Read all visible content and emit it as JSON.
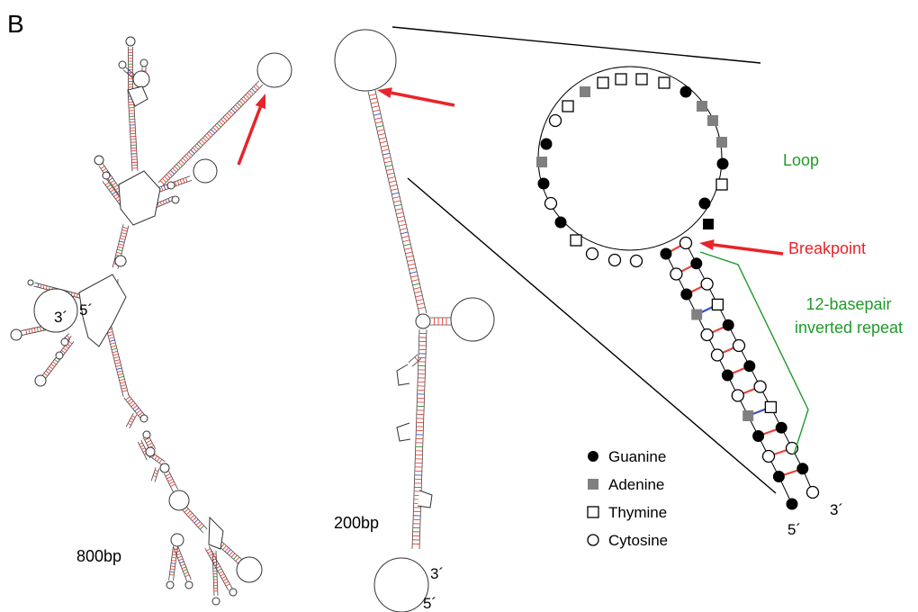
{
  "panel_label": "B",
  "left_structure": {
    "size_label": "800bp",
    "end3": "3´",
    "end5": "5´"
  },
  "middle_structure": {
    "size_label": "200bp",
    "end3": "3´",
    "end5": "5´"
  },
  "zoom": {
    "loop_label": "Loop",
    "breakpoint_label": "Breakpoint",
    "repeat_label_line1": "12-basepair",
    "repeat_label_line2": "inverted repeat",
    "end3": "3´",
    "end5": "5´"
  },
  "legend": {
    "items": [
      {
        "label": "Guanine",
        "shape": "filled-circle"
      },
      {
        "label": "Adenine",
        "shape": "gray-square"
      },
      {
        "label": "Thymine",
        "shape": "open-square"
      },
      {
        "label": "Cytosine",
        "shape": "open-circle"
      }
    ]
  },
  "colors": {
    "pair_red": "#e8443a",
    "pair_blue": "#3a4fb8",
    "pair_green": "#2e8b3a",
    "arrow_red": "#e8242a",
    "annotation_green": "#1f9a2a",
    "adenine_gray": "#808080"
  }
}
